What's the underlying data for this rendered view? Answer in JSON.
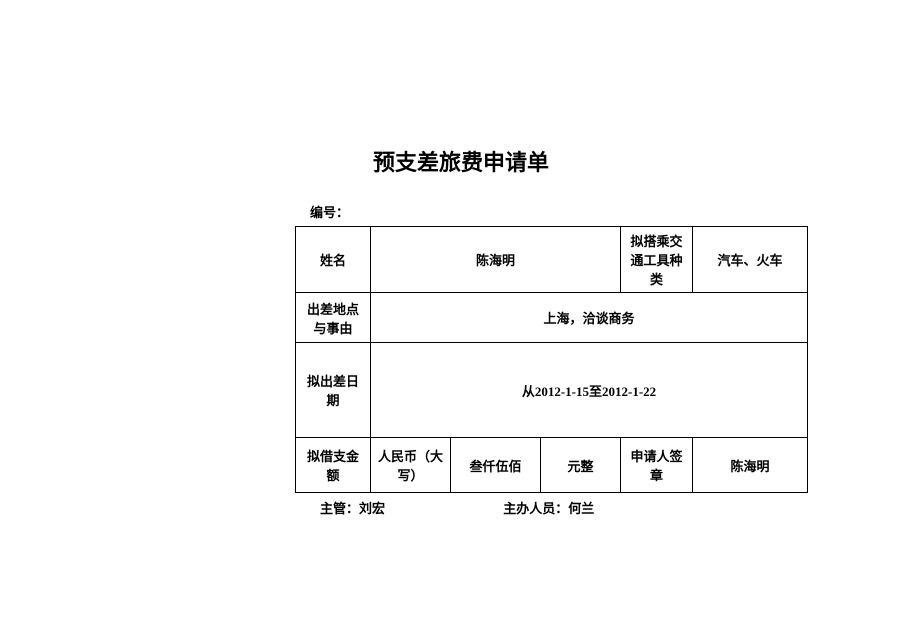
{
  "title": "预支差旅费申请单",
  "formNumber": {
    "label": "编号：",
    "value": ""
  },
  "row1": {
    "nameLabel": "姓名",
    "nameValue": "陈海明",
    "transportLabel": "拟搭乘交通工具种类",
    "transportValue": "汽车、火车"
  },
  "row2": {
    "locationLabel": "出差地点与事由",
    "locationValue": "上海，洽谈商务"
  },
  "row3": {
    "dateLabel": "拟出差日期",
    "dateValue": "从2012-1-15至2012-1-22"
  },
  "row4": {
    "amountLabel": "拟借支金额",
    "currency": "人民币（大写）",
    "amount": "叁仟伍佰",
    "unit": "元整",
    "signLabel": "申请人签章",
    "signValue": "陈海明"
  },
  "footer": {
    "supervisorLabel": "主管：",
    "supervisorValue": "刘宏",
    "handlerLabel": "主办人员：",
    "handlerValue": "何兰"
  }
}
